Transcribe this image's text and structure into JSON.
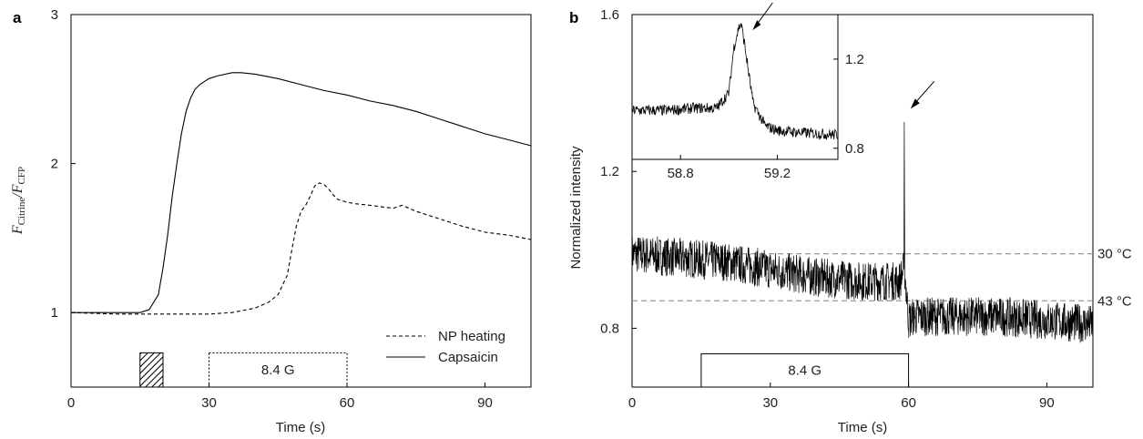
{
  "panels": {
    "a": {
      "letter": "a"
    },
    "b": {
      "letter": "b"
    }
  },
  "chart_data": [
    {
      "type": "line",
      "panel": "a",
      "xlabel": "Time (s)",
      "ylabel_main1": "F",
      "ylabel_sub1": "Citrine",
      "ylabel_slash": "/",
      "ylabel_main2": "F",
      "ylabel_sub2": "CFP",
      "xlim": [
        0,
        100
      ],
      "ylim": [
        0.5,
        3
      ],
      "xticks": [
        0,
        30,
        60,
        90
      ],
      "yticks": [
        1,
        2,
        3
      ],
      "legend_position": "bottom-right",
      "series": [
        {
          "name": "NP heating",
          "style": "dashed",
          "x": [
            0,
            10,
            20,
            30,
            35,
            40,
            43,
            45,
            47,
            48,
            49,
            50,
            51,
            52,
            53,
            54,
            55,
            56,
            57,
            58,
            60,
            62,
            65,
            70,
            72,
            75,
            80,
            85,
            90,
            95,
            100
          ],
          "y": [
            1.0,
            0.99,
            0.99,
            0.99,
            1.0,
            1.03,
            1.07,
            1.12,
            1.25,
            1.42,
            1.58,
            1.68,
            1.72,
            1.78,
            1.85,
            1.87,
            1.86,
            1.83,
            1.79,
            1.76,
            1.74,
            1.73,
            1.72,
            1.7,
            1.72,
            1.68,
            1.63,
            1.58,
            1.54,
            1.52,
            1.49
          ]
        },
        {
          "name": "Capsaicin",
          "style": "solid",
          "x": [
            0,
            5,
            10,
            15,
            17,
            19,
            20,
            21,
            22,
            23,
            24,
            25,
            26,
            27,
            28,
            29,
            30,
            32,
            35,
            37,
            40,
            45,
            50,
            55,
            60,
            65,
            70,
            75,
            80,
            85,
            90,
            95,
            100
          ],
          "y": [
            1.0,
            1.0,
            1.0,
            1.0,
            1.02,
            1.12,
            1.3,
            1.52,
            1.78,
            2.0,
            2.2,
            2.35,
            2.44,
            2.5,
            2.53,
            2.55,
            2.57,
            2.59,
            2.61,
            2.61,
            2.6,
            2.57,
            2.53,
            2.49,
            2.46,
            2.42,
            2.39,
            2.35,
            2.3,
            2.25,
            2.2,
            2.16,
            2.12
          ]
        }
      ],
      "annotations": {
        "stimulus_box_label": "8.4 G",
        "stimulus_box_x": [
          30,
          60
        ],
        "stimulus_box_style": "dotted",
        "hatched_box_x": [
          15,
          20
        ],
        "hatched_box_style": "hatched"
      }
    },
    {
      "type": "line",
      "panel": "b",
      "xlabel": "Time (s)",
      "ylabel": "Normalized intensity",
      "xlim": [
        0,
        100
      ],
      "ylim": [
        0.65,
        1.6
      ],
      "xticks": [
        0,
        30,
        60,
        90
      ],
      "yticks": [
        0.8,
        1.2,
        1.6
      ],
      "series": [
        {
          "name": "",
          "style": "noisy-solid",
          "x": [
            0,
            10,
            20,
            30,
            40,
            50,
            58,
            59,
            59.05,
            59.15,
            60,
            61,
            70,
            80,
            90,
            100
          ],
          "y": [
            0.99,
            0.98,
            0.97,
            0.95,
            0.93,
            0.92,
            0.92,
            0.95,
            1.38,
            0.95,
            0.82,
            0.83,
            0.83,
            0.83,
            0.82,
            0.81
          ],
          "noise_amplitude": 0.05
        }
      ],
      "reference_lines": [
        {
          "y": 0.99,
          "label": "30 °C",
          "style": "dashed"
        },
        {
          "y": 0.87,
          "label": "43 °C",
          "style": "dashed"
        }
      ],
      "annotations": {
        "stimulus_box_label": "8.4 G",
        "stimulus_box_x": [
          15,
          60
        ],
        "stimulus_box_style": "solid",
        "arrow_at_x": 59.05
      },
      "inset": {
        "type": "line",
        "xlim": [
          58.6,
          59.45
        ],
        "ylim": [
          0.75,
          1.4
        ],
        "xticks": [
          58.8,
          59.2
        ],
        "yticks": [
          0.8,
          1.2
        ],
        "x": [
          58.6,
          58.75,
          58.85,
          58.95,
          59.0,
          59.02,
          59.04,
          59.05,
          59.06,
          59.08,
          59.1,
          59.15,
          59.2,
          59.3,
          59.45
        ],
        "y": [
          0.97,
          0.97,
          0.98,
          0.98,
          1.05,
          1.25,
          1.34,
          1.36,
          1.3,
          1.15,
          1.0,
          0.9,
          0.88,
          0.87,
          0.86
        ],
        "noise_amplitude": 0.025,
        "arrow_at_x": 59.06
      }
    }
  ]
}
